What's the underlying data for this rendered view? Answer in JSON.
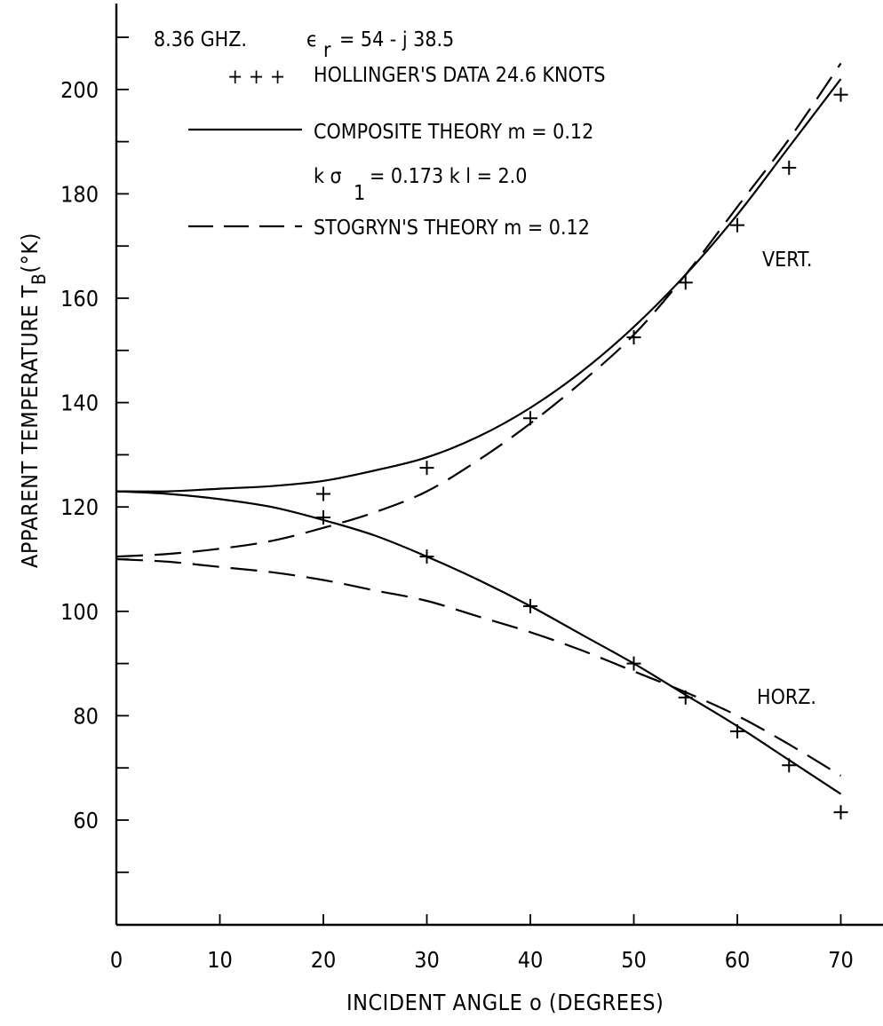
{
  "chart_data": {
    "type": "line",
    "xlabel": "INCIDENT ANGLE o (DEGREES)",
    "ylabel": {
      "main": "APPARENT TEMPERATURE T",
      "sub": "B",
      "unit": "(°K)"
    },
    "xlim": [
      0,
      75
    ],
    "ylim": [
      40,
      220
    ],
    "xticks": [
      0,
      10,
      20,
      30,
      40,
      50,
      60,
      70
    ],
    "yticks_major": [
      60,
      80,
      100,
      120,
      140,
      160,
      180,
      200
    ],
    "yticks_minor": [
      50,
      70,
      90,
      110,
      130,
      150,
      170,
      190,
      210
    ],
    "grid": false,
    "annotation_header": {
      "freq": "8.36 GHZ.",
      "eps_symbol": "ϵ",
      "eps_sub": "r",
      "eps_value": "= 54 - j 38.5"
    },
    "legend": {
      "placement": "top-left",
      "data_symbol": "+ + +",
      "data_label": "HOLLINGER'S DATA 24.6 KNOTS",
      "composite_label": "COMPOSITE THEORY m = 0.12",
      "composite_params_a": "k σ",
      "composite_params_sub": "1",
      "composite_params_b": "= 0.173  k l = 2.0",
      "stogryn_label": "STOGRYN'S THEORY m = 0.12"
    },
    "curve_labels": {
      "vert": "VERT.",
      "horz": "HORZ."
    },
    "series": [
      {
        "name": "HOLLINGER'S DATA 24.6 KNOTS (VERT.)",
        "style": "marker-plus",
        "x": [
          20,
          30,
          40,
          50,
          55,
          60,
          65,
          70
        ],
        "y": [
          122.5,
          127.5,
          137,
          152.5,
          163,
          174,
          185,
          199
        ]
      },
      {
        "name": "HOLLINGER'S DATA 24.6 KNOTS (HORZ.)",
        "style": "marker-plus",
        "x": [
          20,
          30,
          40,
          50,
          55,
          60,
          65,
          70
        ],
        "y": [
          118,
          110.5,
          101,
          90,
          83.5,
          77,
          70.5,
          61.5
        ]
      },
      {
        "name": "COMPOSITE THEORY (VERT.)",
        "style": "solid",
        "x": [
          0,
          5,
          10,
          15,
          20,
          25,
          30,
          35,
          40,
          45,
          50,
          55,
          60,
          65,
          70
        ],
        "y": [
          123,
          123,
          123.5,
          124,
          125,
          127,
          129.5,
          133.5,
          139,
          146,
          154.5,
          164.5,
          176,
          189,
          202
        ]
      },
      {
        "name": "COMPOSITE THEORY (HORZ.)",
        "style": "solid",
        "x": [
          0,
          5,
          10,
          15,
          20,
          25,
          30,
          35,
          40,
          45,
          50,
          55,
          60,
          65,
          70
        ],
        "y": [
          123,
          122.5,
          121.5,
          120,
          117.5,
          114.5,
          110.5,
          106,
          101,
          95.5,
          90,
          84,
          78,
          71.5,
          65
        ]
      },
      {
        "name": "STOGRYN'S THEORY (VERT.)",
        "style": "dashed",
        "x": [
          0,
          5,
          10,
          15,
          20,
          25,
          30,
          35,
          40,
          45,
          50,
          55,
          60,
          65,
          70
        ],
        "y": [
          110.5,
          111,
          112,
          113.5,
          116,
          119,
          123,
          129,
          136,
          144,
          153,
          164.5,
          177.5,
          190.5,
          205
        ]
      },
      {
        "name": "STOGRYN'S THEORY (HORZ.)",
        "style": "dashed",
        "x": [
          0,
          5,
          10,
          15,
          20,
          25,
          30,
          35,
          40,
          45,
          50,
          55,
          60,
          65,
          70
        ],
        "y": [
          110,
          109.5,
          108.5,
          107.5,
          106,
          104,
          102,
          99,
          96,
          92.5,
          88.5,
          84.5,
          80,
          74.5,
          68.5
        ]
      }
    ]
  }
}
